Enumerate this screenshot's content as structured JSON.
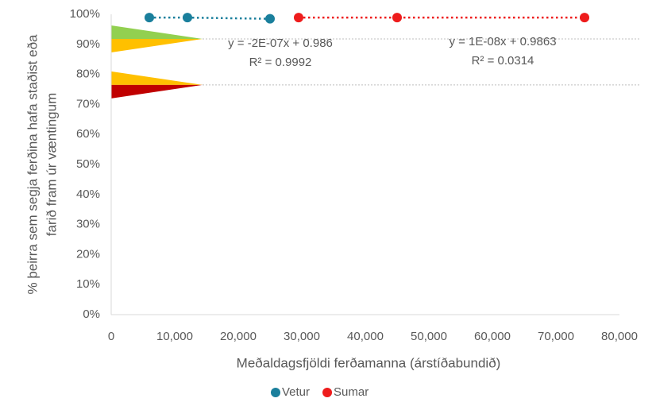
{
  "chart_data": {
    "type": "scatter",
    "xlabel": "Meðaldagsfjöldi ferðamanna (árstíðabundið)",
    "ylabel": [
      "% þeirra sem segja ferðina hafa staðist eða",
      "farið fram úr væntingum"
    ],
    "xlim": [
      0,
      80000
    ],
    "xticks": [
      0,
      {
        "value": 10000,
        "label": "10,000"
      },
      {
        "value": 20000,
        "label": "20,000"
      },
      {
        "value": 30000,
        "label": "30,000"
      },
      {
        "value": 40000,
        "label": "40,000"
      },
      {
        "value": 50000,
        "label": "50,000"
      },
      {
        "value": 60000,
        "label": "60,000"
      },
      {
        "value": 70000,
        "label": "70,000"
      },
      {
        "value": 80000,
        "label": "80,000"
      }
    ],
    "ylim": [
      0,
      100
    ],
    "yticks": [
      {
        "value": 0,
        "label": "0%"
      },
      {
        "value": 10,
        "label": "10%"
      },
      {
        "value": 20,
        "label": "20%"
      },
      {
        "value": 30,
        "label": "30%"
      },
      {
        "value": 40,
        "label": "40%"
      },
      {
        "value": 50,
        "label": "50%"
      },
      {
        "value": 60,
        "label": "60%"
      },
      {
        "value": 70,
        "label": "70%"
      },
      {
        "value": 80,
        "label": "80%"
      },
      {
        "value": 90,
        "label": "90%"
      },
      {
        "value": 100,
        "label": "100%"
      }
    ],
    "grid": false,
    "series": [
      {
        "name": "Vetur",
        "color": "#1a7f9c",
        "x": [
          6000,
          12000,
          25000
        ],
        "values": [
          98.9,
          98.9,
          98.5
        ]
      },
      {
        "name": "Sumar",
        "color": "#ee1c1c",
        "x": [
          29500,
          45000,
          74500
        ],
        "values": [
          98.9,
          98.9,
          98.9
        ]
      }
    ],
    "annotations": [
      [
        "y = -2E-07x + 0.986",
        "R² = 0.9992"
      ],
      [
        "y = 1E-08x + 0.9863",
        "R² = 0.0314"
      ]
    ],
    "thresholds": [
      {
        "value": 91.8,
        "colors": [
          "#92d050",
          "#ffc000"
        ]
      },
      {
        "value": 76.5,
        "colors": [
          "#ffc000",
          "#c00000"
        ]
      }
    ],
    "legend": "bottom"
  }
}
